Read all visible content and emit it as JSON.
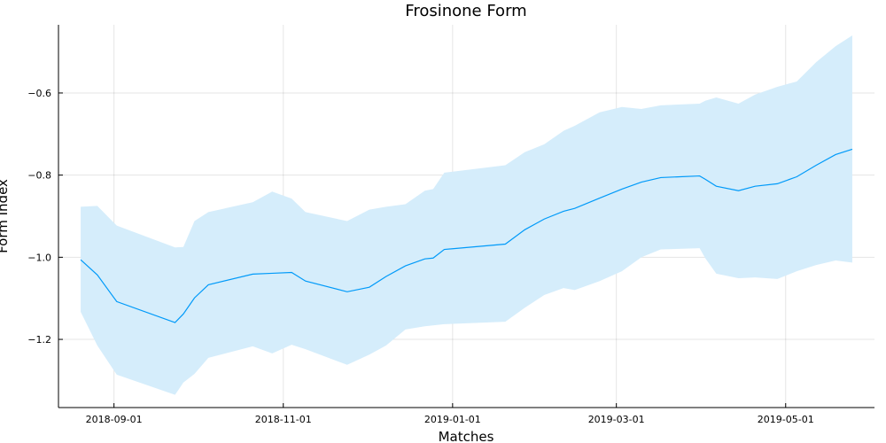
{
  "chart_data": {
    "type": "line",
    "title": "Frosinone Form",
    "xlabel": "Matches",
    "ylabel": "Form Index",
    "x": [
      "2018-08-20",
      "2018-08-26",
      "2018-09-02",
      "2018-09-23",
      "2018-09-26",
      "2018-09-30",
      "2018-10-05",
      "2018-10-21",
      "2018-10-28",
      "2018-11-04",
      "2018-11-09",
      "2018-11-24",
      "2018-12-02",
      "2018-12-08",
      "2018-12-15",
      "2018-12-22",
      "2018-12-25",
      "2018-12-29",
      "2019-01-20",
      "2019-01-27",
      "2019-02-03",
      "2019-02-10",
      "2019-02-14",
      "2019-02-23",
      "2019-03-03",
      "2019-03-10",
      "2019-03-17",
      "2019-03-31",
      "2019-04-02",
      "2019-04-06",
      "2019-04-14",
      "2019-04-20",
      "2019-04-28",
      "2019-05-05",
      "2019-05-12",
      "2019-05-19",
      "2019-05-25"
    ],
    "values": [
      -1.006,
      -1.043,
      -1.108,
      -1.159,
      -1.138,
      -1.099,
      -1.067,
      -1.041,
      -1.039,
      -1.037,
      -1.058,
      -1.084,
      -1.073,
      -1.047,
      -1.021,
      -1.004,
      -1.002,
      -0.981,
      -0.968,
      -0.933,
      -0.907,
      -0.888,
      -0.881,
      -0.856,
      -0.834,
      -0.817,
      -0.806,
      -0.802,
      -0.81,
      -0.827,
      -0.838,
      -0.827,
      -0.821,
      -0.804,
      -0.776,
      -0.75,
      -0.737
    ],
    "upper": [
      -0.877,
      -0.875,
      -0.923,
      -0.976,
      -0.975,
      -0.912,
      -0.89,
      -0.866,
      -0.84,
      -0.857,
      -0.89,
      -0.912,
      -0.884,
      -0.877,
      -0.871,
      -0.838,
      -0.834,
      -0.794,
      -0.776,
      -0.744,
      -0.725,
      -0.692,
      -0.68,
      -0.647,
      -0.634,
      -0.639,
      -0.63,
      -0.626,
      -0.619,
      -0.611,
      -0.626,
      -0.604,
      -0.585,
      -0.572,
      -0.525,
      -0.486,
      -0.46
    ],
    "lower": [
      -1.133,
      -1.215,
      -1.286,
      -1.335,
      -1.305,
      -1.284,
      -1.245,
      -1.217,
      -1.234,
      -1.213,
      -1.224,
      -1.262,
      -1.237,
      -1.215,
      -1.176,
      -1.168,
      -1.166,
      -1.163,
      -1.157,
      -1.123,
      -1.092,
      -1.075,
      -1.08,
      -1.058,
      -1.034,
      -1.0,
      -0.981,
      -0.978,
      -1.002,
      -1.04,
      -1.051,
      -1.049,
      -1.053,
      -1.034,
      -1.019,
      -1.008,
      -1.013
    ],
    "color": "#009af9",
    "band_color": "#d5edfb",
    "xlim": [
      "2018-08-12",
      "2019-06-02"
    ],
    "xticks": [
      "2018-09-01",
      "2018-11-01",
      "2019-01-01",
      "2019-03-01",
      "2019-05-01"
    ],
    "ylim": [
      -1.366,
      -0.434
    ],
    "yticks": [
      {
        "value": -1.2,
        "label": "−1.2"
      },
      {
        "value": -1.0,
        "label": "−1.0"
      },
      {
        "value": -0.8,
        "label": "−0.8"
      },
      {
        "value": -0.6,
        "label": "−0.6"
      }
    ],
    "grid": true
  }
}
